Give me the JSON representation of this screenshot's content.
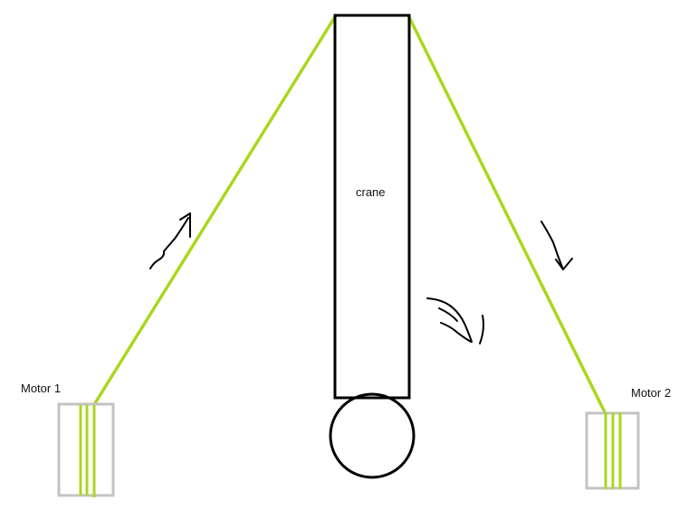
{
  "labels": {
    "motor1": "Motor 1",
    "motor2": "Motor 2",
    "crane": "crane"
  },
  "colors": {
    "cable": "#a8d81e",
    "motor_box": "#c3c3c3",
    "crane_outline": "#000000",
    "arrow": "#000000",
    "background": "#ffffff"
  }
}
